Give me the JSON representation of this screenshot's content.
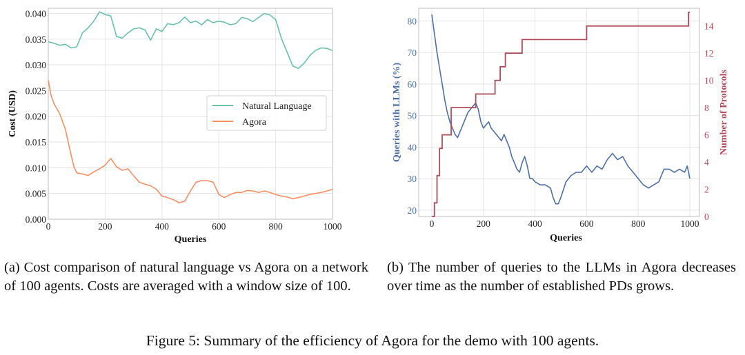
{
  "chart_data": [
    {
      "type": "line",
      "xlabel": "Queries",
      "ylabel": "Cost (USD)",
      "xlim": [
        0,
        1000
      ],
      "ylim": [
        0.0,
        0.041
      ],
      "xticks": [
        0,
        200,
        400,
        600,
        800,
        1000
      ],
      "xtick_labels": [
        "0",
        "200",
        "400",
        "600",
        "800",
        "1000"
      ],
      "yticks": [
        0.0,
        0.005,
        0.01,
        0.015,
        0.02,
        0.025,
        0.03,
        0.035,
        0.04
      ],
      "ytick_labels": [
        "0.000",
        "0.005",
        "0.010",
        "0.015",
        "0.020",
        "0.025",
        "0.030",
        "0.035",
        "0.040"
      ],
      "grid": true,
      "legend": "center-right",
      "series": [
        {
          "name": "Natural Language",
          "color": "#66c2a5",
          "x": [
            0,
            20,
            40,
            60,
            80,
            100,
            120,
            140,
            160,
            180,
            200,
            220,
            240,
            260,
            280,
            300,
            320,
            340,
            360,
            380,
            400,
            420,
            440,
            460,
            480,
            500,
            520,
            540,
            560,
            580,
            600,
            620,
            640,
            660,
            680,
            700,
            720,
            740,
            760,
            780,
            800,
            820,
            840,
            860,
            880,
            900,
            920,
            940,
            960,
            980,
            1000
          ],
          "y": [
            0.0345,
            0.0342,
            0.0338,
            0.034,
            0.0333,
            0.0335,
            0.0362,
            0.0372,
            0.0385,
            0.0403,
            0.0398,
            0.0395,
            0.0355,
            0.0352,
            0.0362,
            0.037,
            0.0372,
            0.0368,
            0.0348,
            0.037,
            0.0365,
            0.038,
            0.0378,
            0.0382,
            0.0393,
            0.0382,
            0.0385,
            0.0378,
            0.0388,
            0.0382,
            0.0385,
            0.0383,
            0.0378,
            0.038,
            0.0392,
            0.039,
            0.0384,
            0.0392,
            0.04,
            0.0397,
            0.0388,
            0.0352,
            0.0325,
            0.0298,
            0.0293,
            0.0303,
            0.0318,
            0.0328,
            0.0333,
            0.0332,
            0.0328
          ]
        },
        {
          "name": "Agora",
          "color": "#fc8d62",
          "x": [
            0,
            10,
            20,
            40,
            60,
            70,
            80,
            90,
            100,
            120,
            140,
            160,
            180,
            200,
            220,
            240,
            260,
            280,
            300,
            320,
            340,
            360,
            380,
            400,
            420,
            440,
            460,
            480,
            500,
            520,
            540,
            560,
            580,
            600,
            620,
            640,
            660,
            680,
            700,
            720,
            740,
            760,
            780,
            800,
            820,
            840,
            860,
            880,
            900,
            920,
            940,
            960,
            980,
            1000
          ],
          "y": [
            0.027,
            0.024,
            0.0225,
            0.0205,
            0.0175,
            0.015,
            0.0125,
            0.0102,
            0.009,
            0.0088,
            0.0085,
            0.0092,
            0.0098,
            0.0105,
            0.0118,
            0.0102,
            0.0095,
            0.0098,
            0.0085,
            0.0072,
            0.0068,
            0.0065,
            0.0058,
            0.0045,
            0.0042,
            0.0038,
            0.0032,
            0.0035,
            0.0055,
            0.0072,
            0.0075,
            0.0075,
            0.0072,
            0.0048,
            0.0042,
            0.0048,
            0.0052,
            0.0052,
            0.0056,
            0.0055,
            0.0052,
            0.0055,
            0.0052,
            0.0048,
            0.0045,
            0.0043,
            0.004,
            0.0042,
            0.0045,
            0.0048,
            0.005,
            0.0052,
            0.0055,
            0.0058
          ]
        }
      ]
    },
    {
      "type": "line",
      "xlabel": "Queries",
      "ylabel": "Queries with LLMs (%)",
      "y2label": "Number of Protocols",
      "xlim": [
        0,
        1000
      ],
      "ylim": [
        18,
        84
      ],
      "y2lim": [
        0,
        15.3
      ],
      "xticks": [
        0,
        200,
        400,
        600,
        800,
        1000
      ],
      "xtick_labels": [
        "0",
        "200",
        "400",
        "600",
        "800",
        "1000"
      ],
      "yticks": [
        20,
        30,
        40,
        50,
        60,
        70,
        80
      ],
      "ytick_labels": [
        "20",
        "30",
        "40",
        "50",
        "60",
        "70",
        "80"
      ],
      "y2ticks": [
        0,
        2,
        4,
        6,
        8,
        10,
        12,
        14
      ],
      "y2tick_labels": [
        "0",
        "2",
        "4",
        "6",
        "8",
        "10",
        "12",
        "14"
      ],
      "grid": true,
      "series": [
        {
          "name": "Queries with LLMs (%)",
          "axis": "left",
          "color": "#4c6ea8",
          "x": [
            0,
            10,
            20,
            30,
            40,
            50,
            60,
            70,
            80,
            90,
            100,
            110,
            120,
            130,
            140,
            150,
            160,
            170,
            180,
            190,
            200,
            210,
            220,
            230,
            240,
            250,
            260,
            270,
            280,
            290,
            300,
            310,
            320,
            330,
            340,
            350,
            360,
            370,
            380,
            390,
            400,
            420,
            440,
            460,
            470,
            480,
            490,
            500,
            520,
            540,
            560,
            580,
            600,
            620,
            640,
            660,
            680,
            700,
            720,
            740,
            760,
            780,
            800,
            820,
            840,
            860,
            880,
            900,
            920,
            940,
            960,
            980,
            990,
            1000
          ],
          "y": [
            82,
            76,
            70,
            65,
            60,
            55,
            51,
            48,
            46,
            44,
            43,
            45,
            47,
            49,
            51,
            52,
            53,
            54,
            52,
            48,
            46,
            47,
            48,
            46,
            45,
            44,
            43,
            42,
            44,
            42,
            40,
            37,
            35,
            33,
            32,
            35,
            37,
            34,
            30,
            30,
            29,
            28,
            28,
            27,
            24,
            22,
            22,
            24,
            29,
            31,
            32,
            32,
            34,
            32,
            34,
            33,
            36,
            38,
            36,
            37,
            34,
            32,
            30,
            28,
            27,
            28,
            29,
            33,
            33,
            32,
            33,
            32,
            34,
            30
          ]
        },
        {
          "name": "Number of Protocols",
          "axis": "right",
          "color": "#b04a58",
          "step": true,
          "x": [
            0,
            10,
            20,
            30,
            40,
            75,
            170,
            245,
            265,
            285,
            350,
            600,
            995,
            1000
          ],
          "y": [
            0,
            1,
            3,
            5,
            6,
            8,
            9,
            10,
            11,
            12,
            13,
            14,
            15,
            15
          ]
        }
      ]
    }
  ],
  "captions": {
    "a": "(a) Cost comparison of natural language vs Agora on a network of 100 agents.  Costs are averaged with a window size of 100.",
    "b": "(b) The number of queries to the LLMs in Agora decreases over time as the number of established PDs grows.",
    "figure": "Figure 5: Summary of the efficiency of Agora for the demo with 100 agents."
  }
}
